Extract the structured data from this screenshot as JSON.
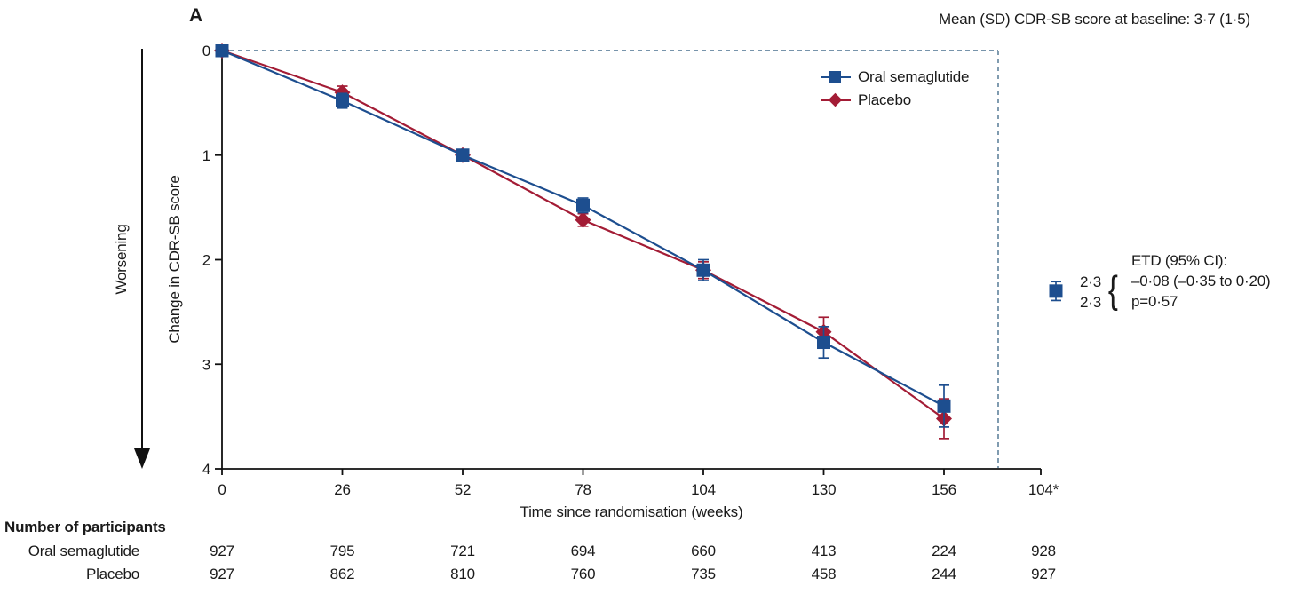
{
  "figure": {
    "panel_label": "A"
  },
  "chart_data": {
    "type": "line",
    "title": "Mean (SD) CDR-SB score at baseline: 3·7 (1·5)",
    "xlabel": "Time since randomisation (weeks)",
    "ylabel": "Change in CDR-SB score",
    "y_axis_direction_note": "Worsening",
    "y_inverted": true,
    "ylim": [
      0,
      4
    ],
    "y_ticks": [
      0,
      1,
      2,
      3,
      4
    ],
    "x_ticks": [
      0,
      26,
      52,
      78,
      104,
      130,
      156
    ],
    "x_extra_tick_label": "104*",
    "grid": false,
    "legend_position": "top-right-inside",
    "reference_line_color": "#4a718f",
    "series": [
      {
        "name": "Oral semaglutide",
        "marker": "square",
        "color": "#1d4e8f",
        "x": [
          0,
          26,
          52,
          78,
          104,
          130,
          156
        ],
        "values": [
          0,
          0.48,
          1.0,
          1.48,
          2.1,
          2.79,
          3.4
        ],
        "err": [
          0.04,
          0.07,
          0.04,
          0.07,
          0.1,
          0.15,
          0.2
        ]
      },
      {
        "name": "Placebo",
        "marker": "diamond",
        "color": "#a31c35",
        "x": [
          0,
          26,
          52,
          78,
          104,
          130,
          156
        ],
        "values": [
          0,
          0.4,
          1.0,
          1.62,
          2.1,
          2.69,
          3.52
        ],
        "err": [
          0.04,
          0.06,
          0.04,
          0.06,
          0.08,
          0.14,
          0.19
        ]
      }
    ],
    "endpoint": {
      "week_label": "104*",
      "value": 2.3,
      "err": 0.09,
      "value_labels": [
        "2·3",
        "2·3"
      ]
    },
    "etd_annotation": {
      "brace": "{",
      "lines": [
        "ETD (95% CI):",
        "–0·08 (–0·35 to 0·20)",
        "p=0·57"
      ]
    }
  },
  "participants": {
    "heading": "Number of participants",
    "rows": [
      {
        "label": "Oral semaglutide",
        "values": [
          927,
          795,
          721,
          694,
          660,
          413,
          224,
          928
        ]
      },
      {
        "label": "Placebo",
        "values": [
          927,
          862,
          810,
          760,
          735,
          458,
          244,
          927
        ]
      }
    ]
  }
}
